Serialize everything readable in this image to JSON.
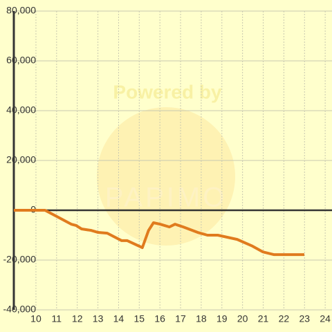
{
  "chart_data": {
    "type": "line",
    "watermark": [
      "Powered by",
      "PAPIMO"
    ],
    "x": [
      8.93,
      10.44,
      10.94,
      11.71,
      11.94,
      12.21,
      12.68,
      13.01,
      13.45,
      14.15,
      14.42,
      15.15,
      15.45,
      15.69,
      16.02,
      16.46,
      16.73,
      17.13,
      17.83,
      18.3,
      18.8,
      19.74,
      20.48,
      20.98,
      21.51,
      22.99
    ],
    "series": [
      {
        "color": "#e07b1e",
        "values": [
          0,
          0,
          -2200,
          -5600,
          -6100,
          -7500,
          -8100,
          -8900,
          -9200,
          -12200,
          -12200,
          -15000,
          -8100,
          -5000,
          -5600,
          -6700,
          -5600,
          -6700,
          -8900,
          -10000,
          -10000,
          -11700,
          -14400,
          -16700,
          -17800,
          -17800
        ]
      }
    ],
    "xlim": [
      8.93,
      24.33
    ],
    "ylim": [
      -40000,
      80000
    ],
    "xticks": [
      10,
      11,
      12,
      13,
      14,
      15,
      16,
      17,
      18,
      19,
      20,
      21,
      22,
      23,
      24
    ],
    "yticks": [
      {
        "value": -40000,
        "label": "-40,000"
      },
      {
        "value": -20000,
        "label": "-20,000"
      },
      0,
      {
        "value": 20000,
        "label": "20,000"
      },
      {
        "value": 40000,
        "label": "40,000"
      },
      {
        "value": 60000,
        "label": "60,000"
      },
      {
        "value": 80000,
        "label": "80,000"
      }
    ],
    "grid": true
  }
}
